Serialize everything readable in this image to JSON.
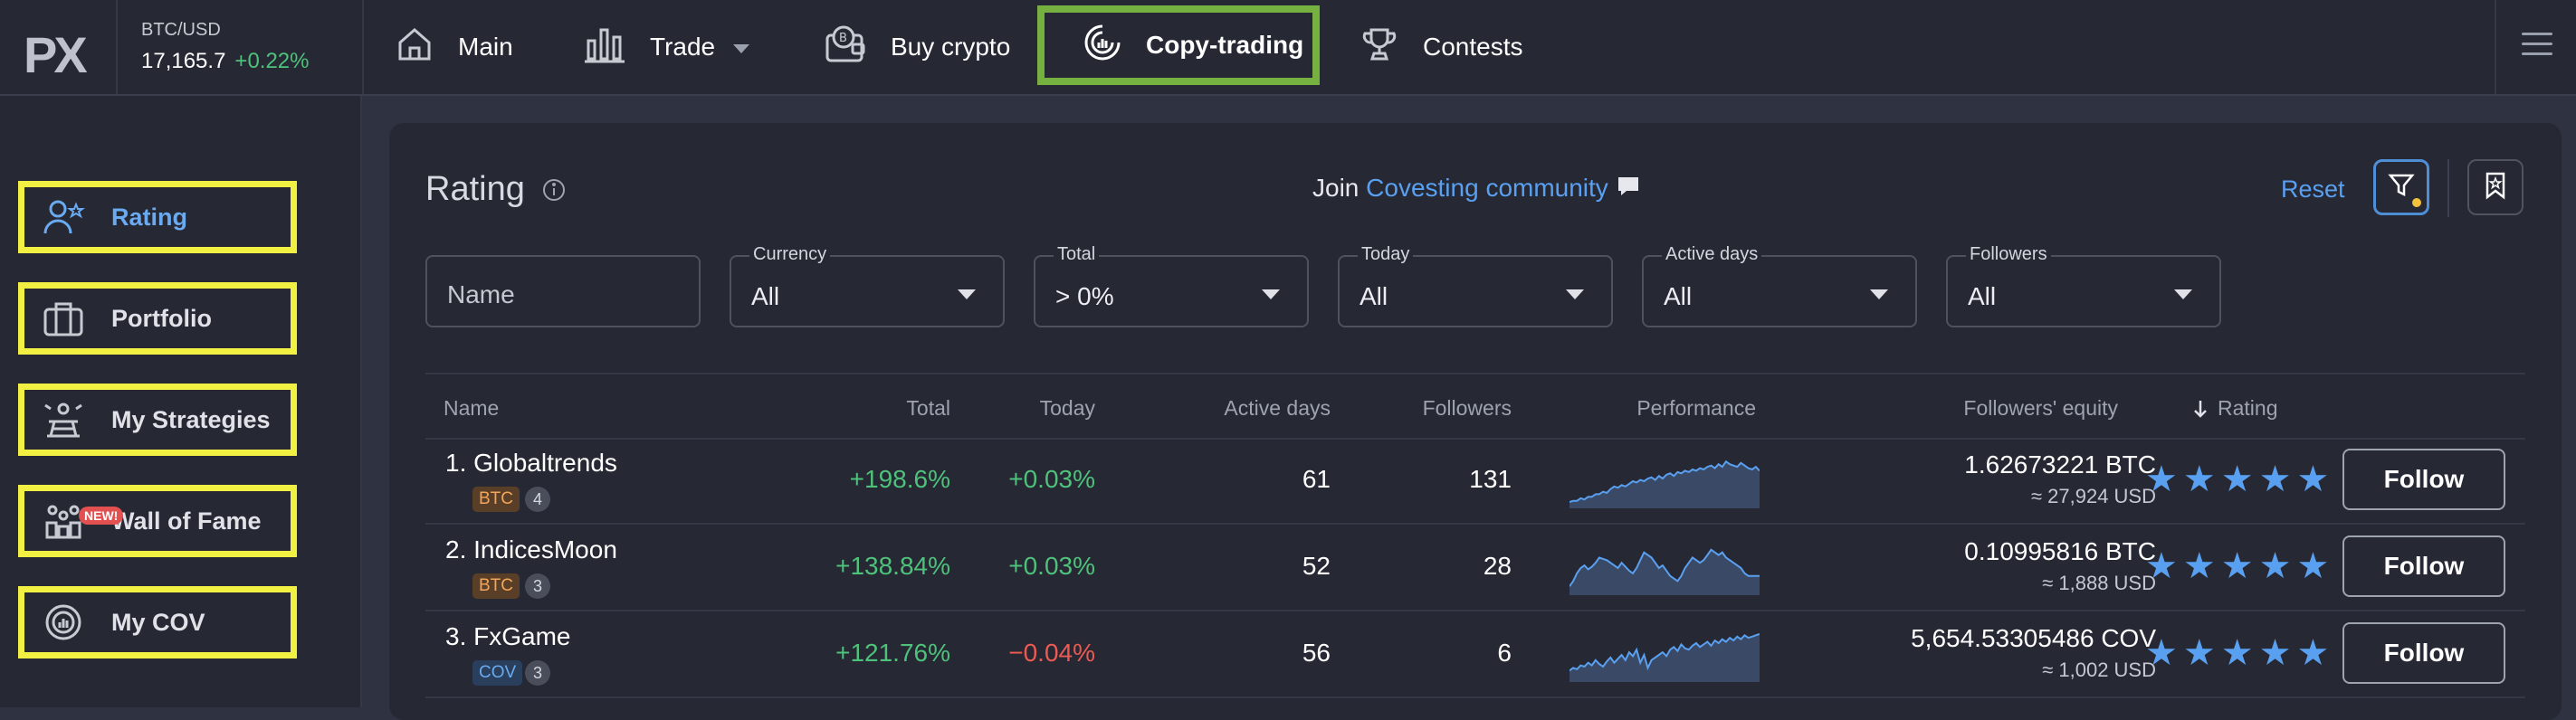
{
  "header": {
    "logo_text": "PX",
    "ticker": {
      "pair": "BTC/USD",
      "price": "17,165.7",
      "change": "+0.22%"
    },
    "nav": [
      {
        "label": "Main",
        "icon": "home-icon"
      },
      {
        "label": "Trade",
        "icon": "bar-chart-icon"
      },
      {
        "label": "Buy crypto",
        "icon": "wallet-crypto-icon"
      },
      {
        "label": "Copy-trading",
        "icon": "copy-trading-icon"
      },
      {
        "label": "Contests",
        "icon": "trophy-icon"
      }
    ]
  },
  "sidebar": {
    "items": [
      {
        "label": "Rating",
        "icon": "user-star-icon"
      },
      {
        "label": "Portfolio",
        "icon": "briefcase-icon"
      },
      {
        "label": "My Strategies",
        "icon": "strategies-icon"
      },
      {
        "label": "Wall of Fame",
        "icon": "wall-of-fame-icon",
        "badge": "NEW!"
      },
      {
        "label": "My COV",
        "icon": "cov-icon"
      }
    ]
  },
  "panel": {
    "title": "Rating",
    "join_prefix": "Join",
    "join_link": "Covesting community",
    "reset": "Reset"
  },
  "filters": {
    "name_placeholder": "Name",
    "currency": {
      "label": "Currency",
      "value": "All"
    },
    "total": {
      "label": "Total",
      "value": "> 0%"
    },
    "today": {
      "label": "Today",
      "value": "All"
    },
    "active_days": {
      "label": "Active days",
      "value": "All"
    },
    "followers": {
      "label": "Followers",
      "value": "All"
    }
  },
  "table": {
    "headers": {
      "name": "Name",
      "total": "Total",
      "today": "Today",
      "active_days": "Active days",
      "followers": "Followers",
      "performance": "Performance",
      "equity": "Followers' equity",
      "rating": "Rating"
    },
    "rows": [
      {
        "name": "1. Globaltrends",
        "tag": "BTC",
        "count": "4",
        "total": "+198.6%",
        "today": "+0.03%",
        "active_days": "61",
        "followers": "131",
        "equity": "1.62673221 BTC",
        "equity_usd": "≈ 27,924 USD",
        "stars": 5,
        "follow": "Follow",
        "spark": [
          2,
          3,
          3,
          5,
          4,
          6,
          6,
          8,
          8,
          10,
          9,
          12,
          14,
          13,
          15,
          14,
          16,
          18,
          17,
          19,
          18,
          20,
          21,
          19,
          22,
          20,
          23,
          24,
          22,
          25,
          24,
          26,
          25,
          27,
          26,
          28,
          27,
          29,
          30,
          28,
          31,
          29,
          33,
          31,
          30,
          29,
          32,
          30,
          28,
          27,
          29,
          26
        ]
      },
      {
        "name": "2. IndicesMoon",
        "tag": "BTC",
        "count": "3",
        "total": "+138.84%",
        "today": "+0.03%",
        "active_days": "52",
        "followers": "28",
        "equity": "0.10995816 BTC",
        "equity_usd": "≈ 1,888 USD",
        "stars": 5,
        "follow": "Follow",
        "spark": [
          4,
          8,
          14,
          18,
          20,
          17,
          19,
          22,
          26,
          25,
          24,
          22,
          20,
          18,
          22,
          19,
          16,
          14,
          18,
          24,
          30,
          28,
          26,
          22,
          18,
          20,
          16,
          12,
          10,
          8,
          12,
          18,
          22,
          26,
          24,
          22,
          24,
          28,
          32,
          30,
          28,
          30,
          26,
          24,
          22,
          20,
          18,
          14,
          12,
          12,
          12,
          12
        ]
      },
      {
        "name": "3. FxGame",
        "tag": "COV",
        "count": "3",
        "total": "+121.76%",
        "today": "−0.04%",
        "active_days": "56",
        "followers": "6",
        "equity": "5,654.53305486 COV",
        "equity_usd": "≈ 1,002 USD",
        "stars": 5,
        "follow": "Follow",
        "spark": [
          6,
          8,
          7,
          10,
          9,
          12,
          10,
          14,
          11,
          9,
          13,
          16,
          12,
          15,
          18,
          14,
          20,
          17,
          22,
          12,
          18,
          8,
          14,
          16,
          18,
          20,
          17,
          22,
          24,
          21,
          26,
          23,
          22,
          25,
          27,
          24,
          26,
          28,
          25,
          29,
          27,
          30,
          28,
          31,
          29,
          32,
          30,
          33,
          31,
          32,
          33,
          34
        ]
      }
    ]
  },
  "colors": {
    "accent": "#5aa0f0",
    "positive": "#4ec17a",
    "negative": "#ec5a52",
    "highlight_green": "#76b041",
    "highlight_yellow": "#f3f044"
  }
}
